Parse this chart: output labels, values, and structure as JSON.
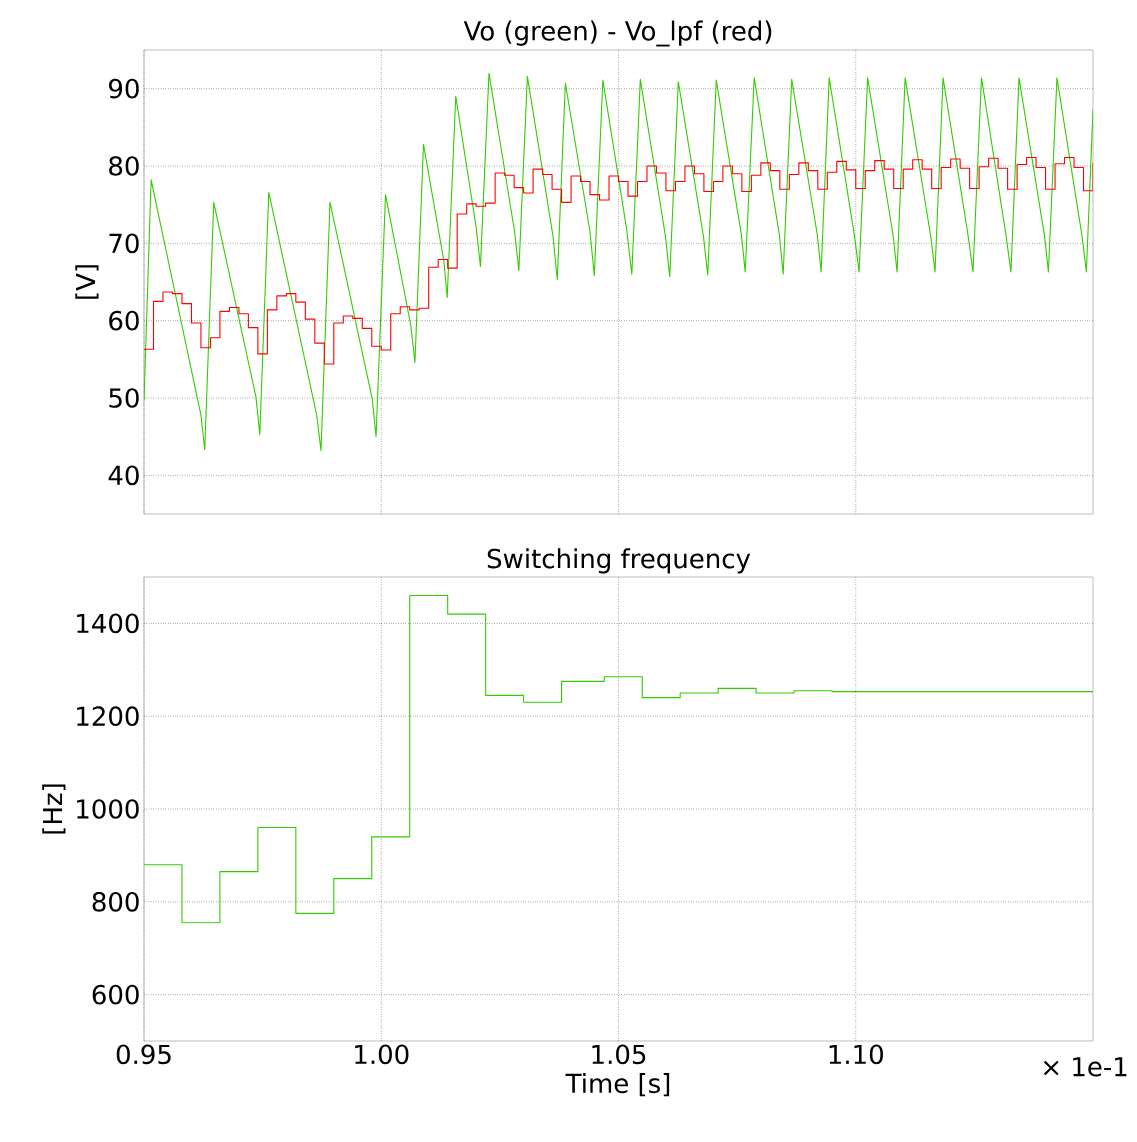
{
  "chart_data": [
    {
      "type": "line",
      "title": "Vo (green) - Vo_lpf (red)",
      "ylabel": "[V]",
      "xlim": [
        0.95,
        1.15
      ],
      "ylim": [
        35,
        95
      ],
      "xticks": [
        {
          "value": 0.95,
          "label": null
        },
        {
          "value": 1.0,
          "label": null
        },
        {
          "value": 1.05,
          "label": null
        },
        {
          "value": 1.1,
          "label": null
        }
      ],
      "yticks": [
        40,
        50,
        60,
        70,
        80,
        90
      ],
      "grid": true,
      "tick_labels": "y",
      "series": [
        {
          "type": "line",
          "color": "#33cc00",
          "x": [
            0.95,
            0.9515,
            0.962,
            0.9628,
            0.9647,
            0.9736,
            0.9744,
            0.9763,
            0.9864,
            0.9873,
            0.9892,
            0.9981,
            0.9989,
            1.0009,
            1.0062,
            1.0071,
            1.0089,
            1.0132,
            1.0139,
            1.0157,
            1.02,
            1.0209,
            1.0227,
            1.0281,
            1.029,
            1.0308,
            1.0362,
            1.0371,
            1.0388,
            1.044,
            1.0449,
            1.0467,
            1.0517,
            1.0528,
            1.0546,
            1.0599,
            1.0608,
            1.0626,
            1.0679,
            1.0688,
            1.0706,
            1.0759,
            1.0767,
            1.0786,
            1.0839,
            1.0847,
            1.0865,
            1.0919,
            1.0927,
            1.0944,
            1.0997,
            1.1007,
            1.1025,
            1.1079,
            1.1087,
            1.1104,
            1.1158,
            1.1167,
            1.1184,
            1.1237,
            1.1247,
            1.1265,
            1.1317,
            1.1327,
            1.1344,
            1.1398,
            1.1406,
            1.1424,
            1.1477,
            1.1486,
            1.15
          ],
          "values": [
            49.7,
            78.2,
            47.8,
            43.3,
            75.3,
            50.1,
            45.3,
            76.6,
            47.8,
            43.2,
            75.3,
            49.9,
            45.0,
            76.3,
            59.5,
            54.6,
            82.8,
            67.7,
            63.0,
            89.0,
            72.1,
            67.0,
            92.0,
            71.5,
            66.5,
            91.6,
            70.9,
            65.3,
            90.7,
            71.5,
            65.8,
            91.1,
            71.9,
            66.0,
            91.2,
            70.9,
            65.7,
            90.9,
            70.9,
            65.9,
            91.1,
            71.1,
            66.3,
            91.4,
            71.1,
            66.0,
            91.2,
            71.1,
            66.3,
            91.4,
            71.1,
            66.3,
            91.4,
            70.9,
            66.3,
            91.4,
            70.9,
            66.3,
            91.4,
            70.9,
            66.3,
            91.4,
            70.9,
            66.3,
            91.4,
            70.9,
            66.3,
            91.4,
            70.9,
            66.3,
            87.3
          ]
        },
        {
          "type": "step",
          "color": "#ff0000",
          "x": [
            0.95,
            0.952,
            0.954,
            0.956,
            0.958,
            0.96,
            0.962,
            0.964,
            0.966,
            0.968,
            0.97,
            0.972,
            0.974,
            0.976,
            0.978,
            0.98,
            0.982,
            0.984,
            0.986,
            0.988,
            0.99,
            0.992,
            0.994,
            0.996,
            0.998,
            1.0,
            1.002,
            1.004,
            1.006,
            1.008,
            1.01,
            1.012,
            1.014,
            1.016,
            1.018,
            1.02,
            1.022,
            1.024,
            1.026,
            1.028,
            1.03,
            1.032,
            1.034,
            1.036,
            1.038,
            1.04,
            1.042,
            1.044,
            1.046,
            1.048,
            1.05,
            1.052,
            1.054,
            1.056,
            1.058,
            1.06,
            1.062,
            1.064,
            1.066,
            1.068,
            1.07,
            1.072,
            1.074,
            1.076,
            1.078,
            1.08,
            1.082,
            1.084,
            1.086,
            1.088,
            1.09,
            1.092,
            1.094,
            1.096,
            1.098,
            1.1,
            1.102,
            1.104,
            1.106,
            1.108,
            1.11,
            1.112,
            1.114,
            1.116,
            1.118,
            1.12,
            1.122,
            1.124,
            1.126,
            1.128,
            1.13,
            1.132,
            1.134,
            1.136,
            1.138,
            1.14,
            1.142,
            1.144,
            1.146,
            1.148,
            1.15
          ],
          "values": [
            56.3,
            62.5,
            63.7,
            63.5,
            62.2,
            59.7,
            56.5,
            57.8,
            61.2,
            61.7,
            60.9,
            59.1,
            55.7,
            61.4,
            63.2,
            63.5,
            62.4,
            60.2,
            57.1,
            54.4,
            59.7,
            60.6,
            60.3,
            59.0,
            56.7,
            56.2,
            60.9,
            61.8,
            61.4,
            61.6,
            66.9,
            67.9,
            66.8,
            73.8,
            75.1,
            74.8,
            75.2,
            79.1,
            78.8,
            77.2,
            76.5,
            79.6,
            78.9,
            77.0,
            75.3,
            78.7,
            78.0,
            76.3,
            75.6,
            78.7,
            78.0,
            76.1,
            78.0,
            80.0,
            79.1,
            76.8,
            78.0,
            80.0,
            79.0,
            76.7,
            78.0,
            80.0,
            79.0,
            76.7,
            78.8,
            80.4,
            79.4,
            77.0,
            78.9,
            80.4,
            79.4,
            77.0,
            79.2,
            80.6,
            79.5,
            77.1,
            79.4,
            80.7,
            79.6,
            77.1,
            79.6,
            80.8,
            79.6,
            77.1,
            79.8,
            80.9,
            79.7,
            77.1,
            79.9,
            81.0,
            79.7,
            77.0,
            80.2,
            81.1,
            79.8,
            77.0,
            80.3,
            81.1,
            79.8,
            76.8,
            80.4
          ]
        }
      ]
    },
    {
      "type": "step",
      "title": "Switching frequency",
      "xlabel": "Time [s]",
      "ylabel": "[Hz]",
      "xlim": [
        0.95,
        1.15
      ],
      "ylim": [
        500,
        1500
      ],
      "xticks": [
        {
          "value": 0.95,
          "label": "0.95"
        },
        {
          "value": 1.0,
          "label": "1.00"
        },
        {
          "value": 1.05,
          "label": "1.05"
        },
        {
          "value": 1.1,
          "label": "1.10"
        }
      ],
      "yticks": [
        600,
        800,
        1000,
        1200,
        1400
      ],
      "grid": true,
      "color": "#33cc00",
      "x": [
        0.95,
        0.958,
        0.966,
        0.974,
        0.982,
        0.99,
        0.998,
        1.006,
        1.014,
        1.022,
        1.03,
        1.038,
        1.047,
        1.055,
        1.063,
        1.071,
        1.079,
        1.087,
        1.095,
        1.15
      ],
      "values": [
        880,
        755,
        865,
        960,
        775,
        850,
        940,
        1460,
        1420,
        1245,
        1230,
        1275,
        1285,
        1240,
        1250,
        1260,
        1250,
        1255,
        1253,
        1253
      ],
      "annotations": [
        "× 1e-1"
      ]
    }
  ]
}
